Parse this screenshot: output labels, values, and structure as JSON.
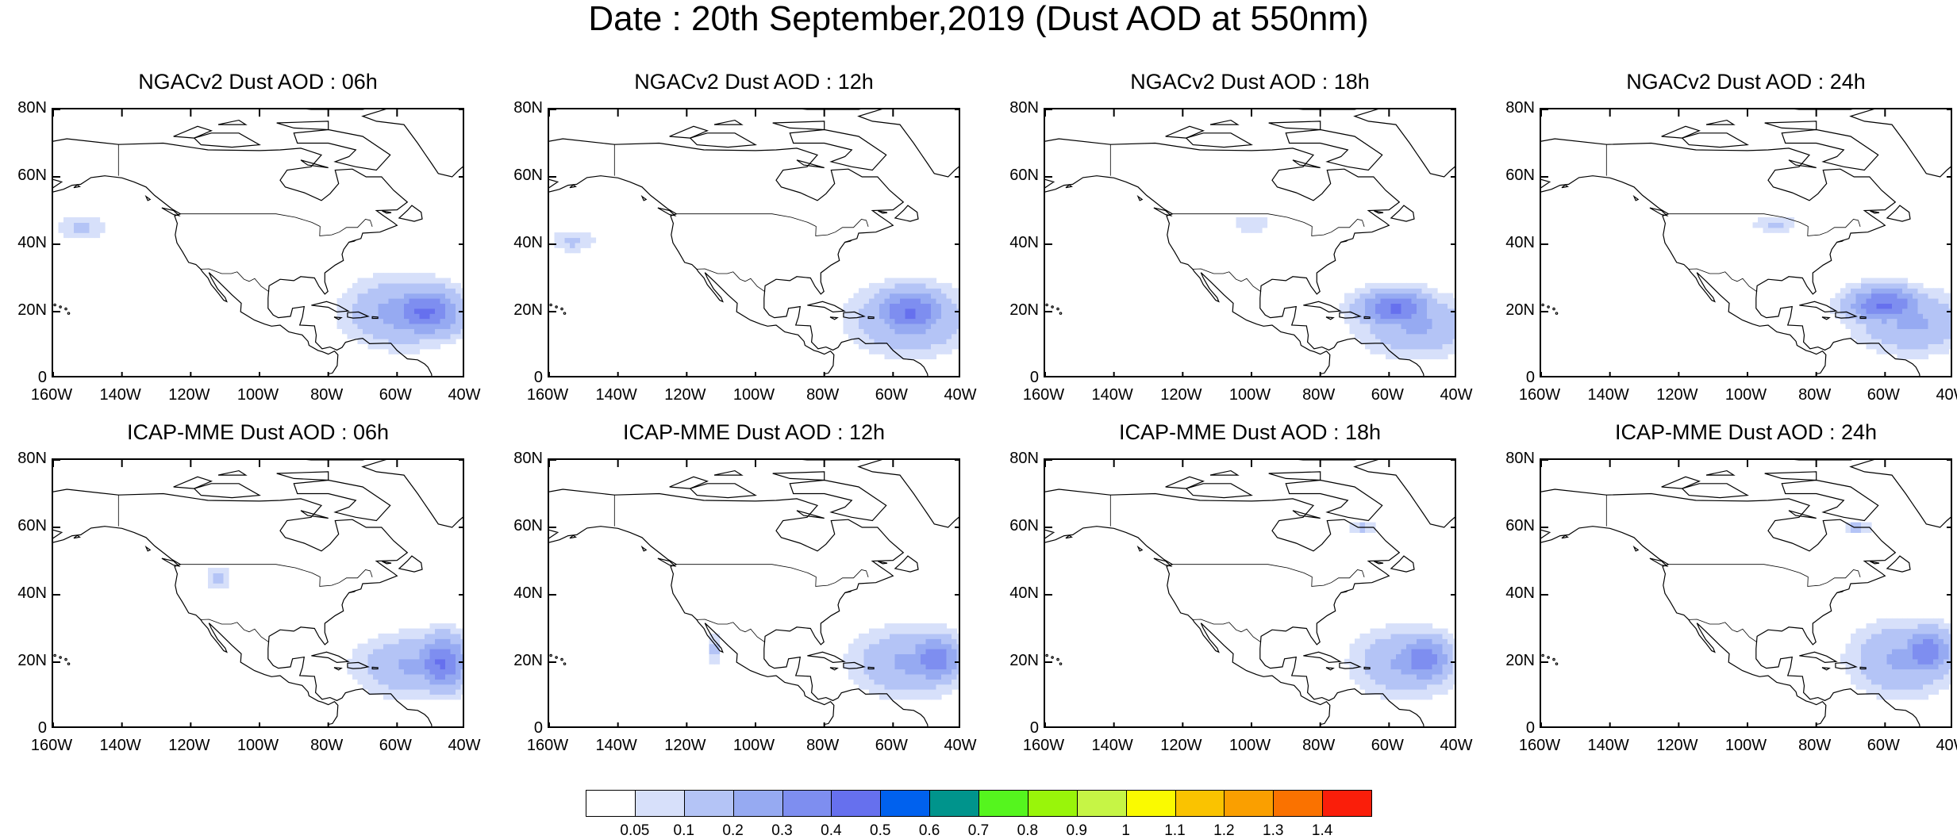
{
  "title": "Date : 20th September,2019 (Dust AOD at 550nm)",
  "y_ticks": [
    "80N",
    "60N",
    "40N",
    "20N",
    "0"
  ],
  "x_ticks": [
    "160W",
    "140W",
    "120W",
    "100W",
    "80W",
    "60W",
    "40W"
  ],
  "map_extent": {
    "lon": [
      -160,
      -40
    ],
    "lat": [
      0,
      80
    ]
  },
  "panels": [
    {
      "title": "NGACv2 Dust AOD : 06h",
      "plumes": [
        {
          "lon": -52,
          "lat": 20,
          "rlon": 14,
          "rlat": 9,
          "aod": 0.42
        },
        {
          "lon": -58,
          "lat": 20,
          "rlon": 20,
          "rlat": 12,
          "aod": 0.25
        },
        {
          "lon": -152,
          "lat": 45,
          "rlon": 9,
          "rlat": 5,
          "aod": 0.12
        }
      ]
    },
    {
      "title": "NGACv2 Dust AOD : 12h",
      "plumes": [
        {
          "lon": -55,
          "lat": 20,
          "rlon": 13,
          "rlat": 9,
          "aod": 0.42
        },
        {
          "lon": -55,
          "lat": 18,
          "rlon": 20,
          "rlat": 12,
          "aod": 0.25
        },
        {
          "lon": -153,
          "lat": 41,
          "rlon": 8,
          "rlat": 4,
          "aod": 0.12
        }
      ]
    },
    {
      "title": "NGACv2 Dust AOD : 18h",
      "plumes": [
        {
          "lon": -58,
          "lat": 21,
          "rlon": 14,
          "rlat": 7,
          "aod": 0.42
        },
        {
          "lon": -52,
          "lat": 16,
          "rlon": 20,
          "rlat": 11,
          "aod": 0.22
        },
        {
          "lon": -100,
          "lat": 46,
          "rlon": 8,
          "rlat": 3,
          "aod": 0.1
        }
      ]
    },
    {
      "title": "NGACv2 Dust AOD : 24h",
      "plumes": [
        {
          "lon": -60,
          "lat": 22,
          "rlon": 14,
          "rlat": 7,
          "aod": 0.42
        },
        {
          "lon": -52,
          "lat": 17,
          "rlon": 20,
          "rlat": 11,
          "aod": 0.22
        },
        {
          "lon": -92,
          "lat": 46,
          "rlon": 8,
          "rlat": 3,
          "aod": 0.12
        }
      ]
    },
    {
      "title": "ICAP-MME Dust AOD : 06h",
      "plumes": [
        {
          "lon": -47,
          "lat": 20,
          "rlon": 10,
          "rlat": 10,
          "aod": 0.42
        },
        {
          "lon": -55,
          "lat": 19,
          "rlon": 20,
          "rlat": 11,
          "aod": 0.22
        },
        {
          "lon": -112,
          "lat": 45,
          "rlon": 4,
          "rlat": 5,
          "aod": 0.12
        }
      ]
    },
    {
      "title": "ICAP-MME Dust AOD : 12h",
      "plumes": [
        {
          "lon": -48,
          "lat": 21,
          "rlon": 10,
          "rlat": 9,
          "aod": 0.38
        },
        {
          "lon": -55,
          "lat": 20,
          "rlon": 20,
          "rlat": 12,
          "aod": 0.22
        },
        {
          "lon": -112,
          "lat": 24,
          "rlon": 3,
          "rlat": 6,
          "aod": 0.12
        }
      ]
    },
    {
      "title": "ICAP-MME Dust AOD : 18h",
      "plumes": [
        {
          "lon": -50,
          "lat": 21,
          "rlon": 10,
          "rlat": 9,
          "aod": 0.38
        },
        {
          "lon": -55,
          "lat": 20,
          "rlon": 18,
          "rlat": 12,
          "aod": 0.22
        },
        {
          "lon": -68,
          "lat": 60,
          "rlon": 5,
          "rlat": 3,
          "aod": 0.12
        }
      ]
    },
    {
      "title": "ICAP-MME Dust AOD : 24h",
      "plumes": [
        {
          "lon": -48,
          "lat": 23,
          "rlon": 10,
          "rlat": 9,
          "aod": 0.38
        },
        {
          "lon": -55,
          "lat": 21,
          "rlon": 18,
          "rlat": 13,
          "aod": 0.22
        },
        {
          "lon": -68,
          "lat": 60,
          "rlon": 6,
          "rlat": 3,
          "aod": 0.12
        }
      ]
    }
  ],
  "colorbar": {
    "labels": [
      "0.05",
      "0.1",
      "0.2",
      "0.3",
      "0.4",
      "0.5",
      "0.6",
      "0.7",
      "0.8",
      "0.9",
      "1",
      "1.1",
      "1.2",
      "1.3",
      "1.4"
    ],
    "colors": [
      "#ffffff",
      "#d7e0fa",
      "#b4c4f6",
      "#96aaf2",
      "#7e8ef0",
      "#6670ee",
      "#0061ee",
      "#00948c",
      "#55f51e",
      "#99f50a",
      "#c6f545",
      "#fafa00",
      "#fac300",
      "#fa9f00",
      "#fa7200",
      "#fa1e0a"
    ]
  }
}
